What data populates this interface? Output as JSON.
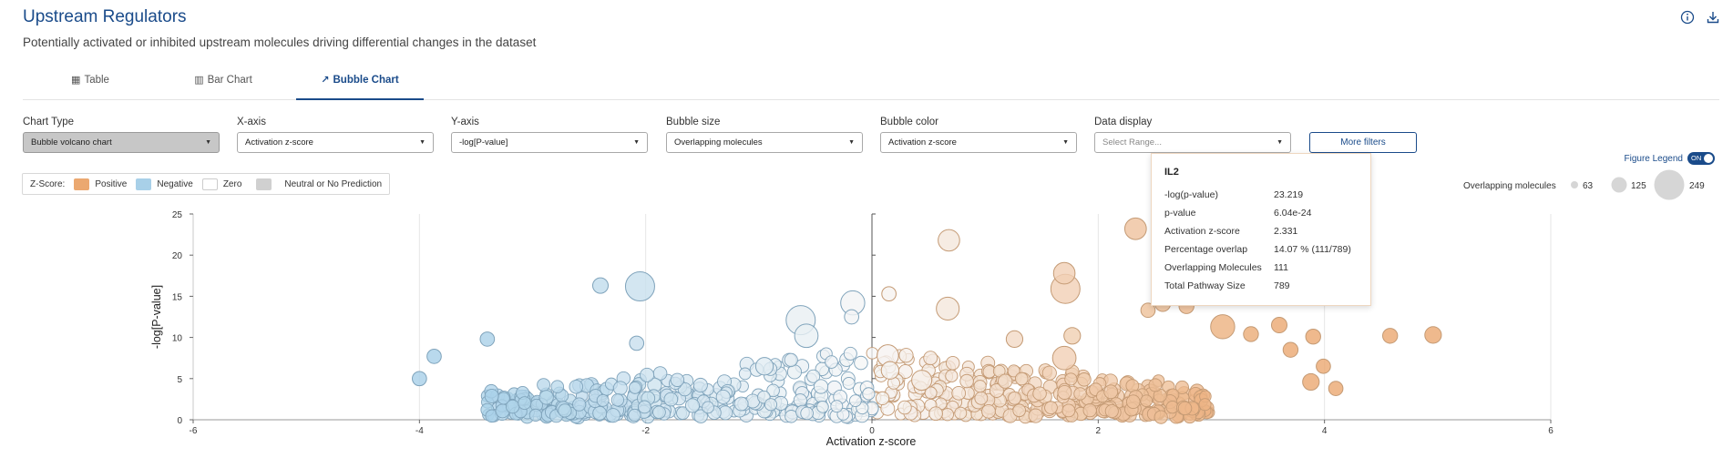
{
  "header": {
    "title": "Upstream Regulators",
    "subtitle": "Potentially activated or inhibited upstream molecules driving differential changes in the dataset"
  },
  "top_icons": [
    "info-icon",
    "download-icon"
  ],
  "tabs": [
    {
      "label": "Table",
      "icon": "table-icon",
      "active": false
    },
    {
      "label": "Bar Chart",
      "icon": "bar-chart-icon",
      "active": false
    },
    {
      "label": "Bubble Chart",
      "icon": "bubble-chart-icon",
      "active": true
    }
  ],
  "controls": {
    "chart_type": {
      "label": "Chart Type",
      "value": "Bubble volcano chart"
    },
    "x_axis": {
      "label": "X-axis",
      "value": "Activation z-score"
    },
    "y_axis": {
      "label": "Y-axis",
      "value": "-log[P-value]"
    },
    "bubble_size": {
      "label": "Bubble size",
      "value": "Overlapping molecules"
    },
    "bubble_color": {
      "label": "Bubble color",
      "value": "Activation z-score"
    },
    "data_display": {
      "label": "Data display",
      "placeholder": "Select Range..."
    },
    "more_filters": "More filters"
  },
  "zscore_legend": {
    "label": "Z-Score:",
    "items": [
      {
        "label": "Positive",
        "color": "#eba870"
      },
      {
        "label": "Negative",
        "color": "#a8d0e8"
      },
      {
        "label": "Zero",
        "color": "#ffffff"
      },
      {
        "label": "Neutral or No Prediction",
        "color": "#d0d0d0"
      }
    ]
  },
  "figure_legend": {
    "label": "Figure Legend",
    "toggle": "ON"
  },
  "size_legend": {
    "label": "Overlapping molecules",
    "values": [
      63,
      125,
      249
    ]
  },
  "tooltip": {
    "title": "IL2",
    "rows": [
      {
        "key": "-log(p-value)",
        "value": "23.219"
      },
      {
        "key": "p-value",
        "value": "6.04e-24"
      },
      {
        "key": "Activation z-score",
        "value": "2.331"
      },
      {
        "key": "Percentage overlap",
        "value": "14.07 % (111/789)"
      },
      {
        "key": "Overlapping Molecules",
        "value": "111"
      },
      {
        "key": "Total Pathway Size",
        "value": "789"
      }
    ]
  },
  "chart_data": {
    "type": "scatter",
    "xlabel": "Activation z-score",
    "ylabel": "-log[P-value]",
    "xlim": [
      -6,
      6
    ],
    "ylim": [
      0,
      25
    ],
    "xticks": [
      -6,
      -4,
      -2,
      0,
      2,
      4,
      6
    ],
    "yticks": [
      0,
      5,
      10,
      15,
      20,
      25
    ],
    "grid": true,
    "colors": {
      "positive": "#eba870",
      "negative": "#a8d0e8",
      "zero": "#ffffff",
      "neutral": "#d0d0d0"
    },
    "points": [
      {
        "x": -2.05,
        "y": 16.2,
        "size": 249
      },
      {
        "x": -0.63,
        "y": 12.1,
        "size": 249
      },
      {
        "x": -0.58,
        "y": 10.2,
        "size": 140
      },
      {
        "x": -0.17,
        "y": 14.2,
        "size": 150
      },
      {
        "x": 0.68,
        "y": 21.8,
        "size": 110
      },
      {
        "x": 0.67,
        "y": 13.5,
        "size": 130
      },
      {
        "x": 1.7,
        "y": 17.8,
        "size": 110
      },
      {
        "x": 1.71,
        "y": 15.9,
        "size": 249
      },
      {
        "x": 1.7,
        "y": 7.5,
        "size": 140
      },
      {
        "x": 2.33,
        "y": 23.2,
        "size": 111
      },
      {
        "x": 3.1,
        "y": 11.3,
        "size": 150
      },
      {
        "x": -2.4,
        "y": 16.3,
        "size": 40
      },
      {
        "x": 0.15,
        "y": 15.3,
        "size": 30
      },
      {
        "x": -0.18,
        "y": 12.5,
        "size": 30
      },
      {
        "x": 2.57,
        "y": 14.1,
        "size": 40
      },
      {
        "x": 2.78,
        "y": 13.8,
        "size": 35
      },
      {
        "x": 2.44,
        "y": 13.3,
        "size": 30
      },
      {
        "x": 3.6,
        "y": 11.5,
        "size": 40
      },
      {
        "x": 3.9,
        "y": 10.1,
        "size": 35
      },
      {
        "x": 3.35,
        "y": 10.4,
        "size": 35
      },
      {
        "x": 3.7,
        "y": 8.5,
        "size": 35
      },
      {
        "x": 4.58,
        "y": 10.2,
        "size": 35
      },
      {
        "x": 4.96,
        "y": 10.3,
        "size": 50
      },
      {
        "x": -4.0,
        "y": 5.0,
        "size": 30
      },
      {
        "x": -3.87,
        "y": 7.7,
        "size": 30
      },
      {
        "x": -3.4,
        "y": 9.8,
        "size": 30
      },
      {
        "x": -2.08,
        "y": 9.3,
        "size": 30
      },
      {
        "x": 0.14,
        "y": 7.8,
        "size": 110
      },
      {
        "x": 0.44,
        "y": 4.8,
        "size": 90
      },
      {
        "x": 0.16,
        "y": 6.0,
        "size": 60
      },
      {
        "x": -0.95,
        "y": 6.5,
        "size": 60
      },
      {
        "x": 1.26,
        "y": 9.8,
        "size": 50
      },
      {
        "x": 1.77,
        "y": 10.2,
        "size": 50
      },
      {
        "x": 3.88,
        "y": 4.6,
        "size": 50
      },
      {
        "x": 3.99,
        "y": 6.5,
        "size": 30
      },
      {
        "x": 4.1,
        "y": 3.8,
        "size": 30
      }
    ],
    "cloud": {
      "description_free": true,
      "x_range": [
        -3.4,
        3.0
      ],
      "count": 620
    }
  }
}
